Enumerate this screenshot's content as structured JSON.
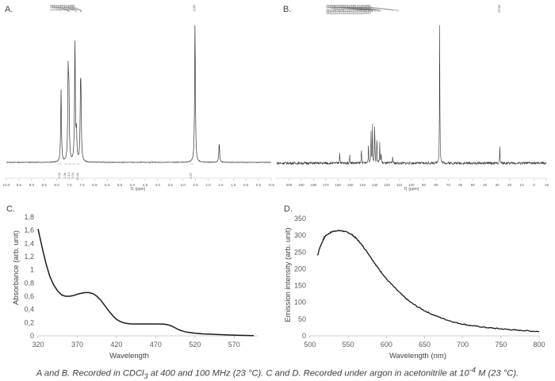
{
  "caption": {
    "part1": "A and B. Recorded in CDCl",
    "sub": "3",
    "part2": " at 400 and 100 MHz (23 °C). C and D. Recorded under argon in acetonitrile at 10",
    "sup": "-4",
    "part3": " M (23 °C)."
  },
  "chart_data": [
    {
      "panel": "A.",
      "type": "line",
      "title": "",
      "xlabel": "f1 (ppm)",
      "xlim": [
        10.0,
        -0.5
      ],
      "ticks": [
        "10.0",
        "9.5",
        "9.0",
        "8.5",
        "8.0",
        "7.5",
        "7.0",
        "6.5",
        "6.0",
        "5.5",
        "5.0",
        "4.5",
        "4.0",
        "3.5",
        "3.0",
        "2.5",
        "2.0",
        "1.5",
        "1.0",
        "0.5",
        "0.0",
        "-0.5"
      ],
      "peak_labels": [
        "7.83",
        "7.56",
        "7.55",
        "7.52",
        "7.51",
        "7.28",
        "7.23",
        "7.22",
        "7.07",
        "7.05",
        "7.04",
        "7.03",
        "2.52"
      ],
      "peaks": [
        {
          "ppm": 7.83,
          "height": 0.52
        },
        {
          "ppm": 7.55,
          "height": 0.6
        },
        {
          "ppm": 7.52,
          "height": 0.47
        },
        {
          "ppm": 7.28,
          "height": 0.86
        },
        {
          "ppm": 7.22,
          "height": 0.2
        },
        {
          "ppm": 7.06,
          "height": 0.42
        },
        {
          "ppm": 7.04,
          "height": 0.37
        },
        {
          "ppm": 2.52,
          "height": 1.0
        },
        {
          "ppm": 1.56,
          "height": 0.14
        }
      ],
      "integrals": [
        "2.00",
        "2.38",
        "2.14",
        "2.04",
        "10.41",
        "0.97"
      ]
    },
    {
      "panel": "B.",
      "type": "line",
      "title": "",
      "xlabel": "f1 (ppm)",
      "xlim": [
        210,
        -10
      ],
      "ticks": [
        "200",
        "190",
        "180",
        "170",
        "160",
        "150",
        "140",
        "130",
        "120",
        "110",
        "100",
        "90",
        "80",
        "70",
        "60",
        "50",
        "40",
        "30",
        "20",
        "10",
        "0",
        "-10"
      ],
      "peak_labels": [
        "158.60",
        "155.53",
        "150.39",
        "140.96",
        "138.44",
        "137.90",
        "135.10",
        "134.44",
        "133.00",
        "132.89",
        "132.19",
        "131.97",
        "131.75",
        "130.05",
        "129.58",
        "128.17",
        "126.73",
        "126.61",
        "125.92",
        "124.76",
        "115.41",
        "112.00",
        "110.37",
        "27.93"
      ],
      "peaks": [
        {
          "ppm": 158.6,
          "height": 0.09
        },
        {
          "ppm": 150.4,
          "height": 0.07
        },
        {
          "ppm": 140.9,
          "height": 0.11
        },
        {
          "ppm": 135.1,
          "height": 0.16
        },
        {
          "ppm": 133.0,
          "height": 0.23
        },
        {
          "ppm": 131.8,
          "height": 0.28
        },
        {
          "ppm": 130.0,
          "height": 0.3
        },
        {
          "ppm": 128.2,
          "height": 0.2
        },
        {
          "ppm": 125.9,
          "height": 0.14
        },
        {
          "ppm": 124.8,
          "height": 0.08
        },
        {
          "ppm": 115.4,
          "height": 0.05
        },
        {
          "ppm": 77.0,
          "height": 1.0
        },
        {
          "ppm": 27.9,
          "height": 0.12
        }
      ]
    },
    {
      "panel": "C.",
      "type": "line",
      "title": "",
      "xlabel": "Wavelength",
      "ylabel": "Absorbance (arb. unit)",
      "xlim": [
        320,
        600
      ],
      "ylim": [
        0,
        1.8
      ],
      "xticks": [
        320,
        370,
        420,
        470,
        520,
        570
      ],
      "yticks": [
        "0",
        "0,2",
        "0,4",
        "0,6",
        "0,8",
        "1",
        "1,2",
        "1,4",
        "1,6",
        "1,8"
      ],
      "x": [
        320,
        325,
        330,
        335,
        340,
        345,
        350,
        355,
        360,
        365,
        370,
        375,
        380,
        385,
        390,
        395,
        400,
        405,
        410,
        415,
        420,
        425,
        430,
        435,
        440,
        450,
        460,
        470,
        480,
        485,
        490,
        495,
        500,
        505,
        510,
        520,
        530,
        540,
        550,
        560,
        570,
        580,
        590,
        595
      ],
      "y": [
        1.62,
        1.35,
        1.1,
        0.9,
        0.77,
        0.68,
        0.62,
        0.6,
        0.6,
        0.61,
        0.63,
        0.645,
        0.655,
        0.655,
        0.64,
        0.6,
        0.54,
        0.46,
        0.38,
        0.31,
        0.25,
        0.215,
        0.195,
        0.185,
        0.18,
        0.18,
        0.18,
        0.18,
        0.178,
        0.17,
        0.15,
        0.12,
        0.09,
        0.07,
        0.055,
        0.04,
        0.03,
        0.025,
        0.02,
        0.015,
        0.01,
        0.007,
        0.004,
        0.003
      ]
    },
    {
      "panel": "D.",
      "type": "line",
      "title": "",
      "xlabel": "Wavelength (nm)",
      "ylabel": "Emission intensity (arb. unit)",
      "xlim": [
        500,
        800
      ],
      "ylim": [
        0,
        350
      ],
      "xticks": [
        500,
        550,
        600,
        650,
        700,
        750,
        800
      ],
      "yticks": [
        0,
        50,
        100,
        150,
        200,
        250,
        300,
        350
      ],
      "x": [
        510,
        512,
        515,
        518,
        520,
        525,
        530,
        535,
        540,
        545,
        550,
        555,
        560,
        565,
        570,
        575,
        580,
        585,
        590,
        595,
        600,
        610,
        620,
        630,
        640,
        650,
        660,
        670,
        680,
        690,
        700,
        710,
        720,
        730,
        740,
        750,
        760,
        770,
        780,
        790,
        800
      ],
      "y": [
        240,
        258,
        275,
        290,
        298,
        306,
        312,
        314,
        314,
        312,
        308,
        302,
        292,
        280,
        265,
        250,
        233,
        216,
        200,
        185,
        170,
        146,
        123,
        103,
        88,
        75,
        64,
        55,
        47,
        40,
        35,
        31,
        28,
        25,
        23,
        21,
        19,
        17,
        16,
        14,
        13
      ]
    }
  ]
}
